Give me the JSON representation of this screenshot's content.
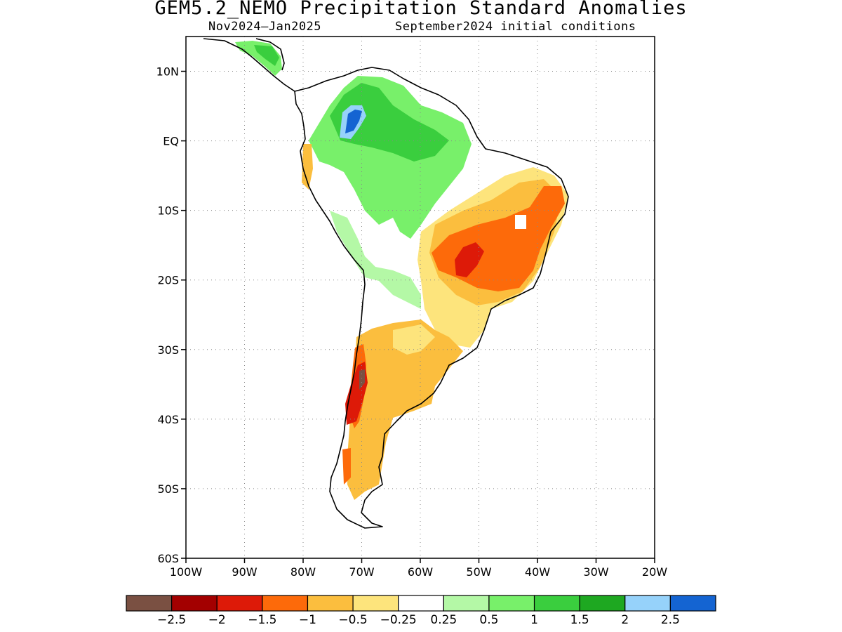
{
  "title": "GEM5.2_NEMO Precipitation Standard Anomalies",
  "subtitle_period": "Nov2024—Jan2025",
  "subtitle_init": "September2024 initial conditions",
  "map": {
    "region": "South America",
    "lon_range": [
      -100,
      -20
    ],
    "lat_range": [
      -60,
      15
    ],
    "lat_ticks": [
      {
        "value": 10,
        "label": "10N"
      },
      {
        "value": 0,
        "label": "EQ"
      },
      {
        "value": -10,
        "label": "10S"
      },
      {
        "value": -20,
        "label": "20S"
      },
      {
        "value": -30,
        "label": "30S"
      },
      {
        "value": -40,
        "label": "40S"
      },
      {
        "value": -50,
        "label": "50S"
      },
      {
        "value": -60,
        "label": "60S"
      }
    ],
    "lon_ticks": [
      {
        "value": -100,
        "label": "100W"
      },
      {
        "value": -90,
        "label": "90W"
      },
      {
        "value": -80,
        "label": "80W"
      },
      {
        "value": -70,
        "label": "70W"
      },
      {
        "value": -60,
        "label": "60W"
      },
      {
        "value": -50,
        "label": "50W"
      },
      {
        "value": -40,
        "label": "40W"
      },
      {
        "value": -30,
        "label": "30W"
      },
      {
        "value": -20,
        "label": "20W"
      }
    ],
    "grid": true
  },
  "colorbar": {
    "colors": [
      "#7a5042",
      "#a30000",
      "#dd1a08",
      "#fd6a0a",
      "#fbbe3e",
      "#fde47c",
      "#ffffff",
      "#b4f8a6",
      "#78f06a",
      "#3ace3e",
      "#1ea821",
      "#96d2fa",
      "#1464d2"
    ],
    "labels": [
      "-2.5",
      "-2",
      "-1.5",
      "-1",
      "-0.5",
      "-0.25",
      "0.25",
      "0.5",
      "1",
      "1.5",
      "2",
      "2.5"
    ]
  }
}
